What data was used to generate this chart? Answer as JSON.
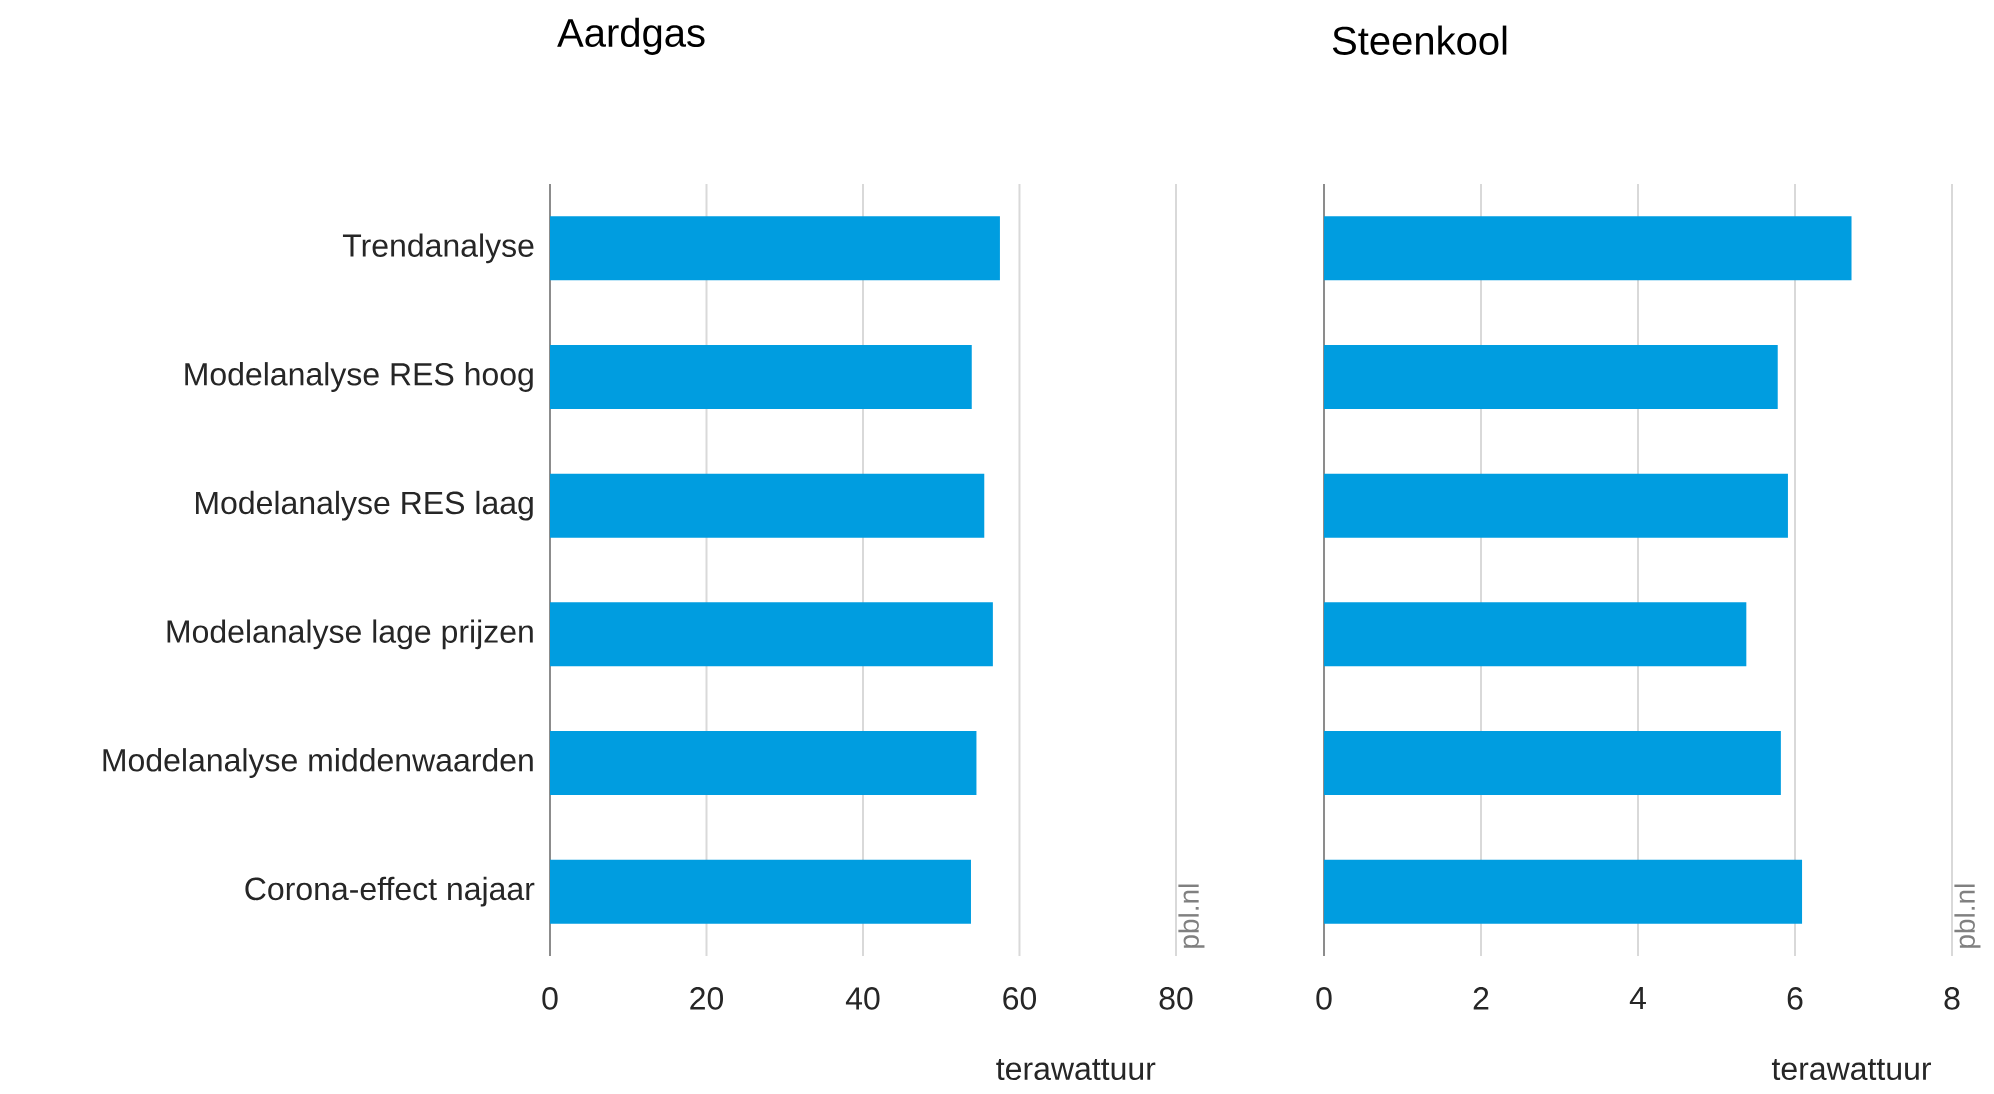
{
  "chart_data": [
    {
      "type": "bar",
      "orientation": "horizontal",
      "title": "Aardgas",
      "xlabel": "terawattuur",
      "categories": [
        "Trendanalyse",
        "Modelanalyse RES hoog",
        "Modelanalyse RES laag",
        "Modelanalyse lage prijzen",
        "Modelanalyse middenwaarden",
        "Corona-effect najaar"
      ],
      "values": [
        57.5,
        53.9,
        55.5,
        56.6,
        54.5,
        53.8
      ],
      "color": "#009de0",
      "xlim": [
        0,
        80
      ],
      "xticks": [
        0,
        20,
        40,
        60,
        80
      ],
      "grid": "x",
      "annotations": [
        "pbl.nl"
      ]
    },
    {
      "type": "bar",
      "orientation": "horizontal",
      "title": "Steenkool",
      "xlabel": "terawattuur",
      "categories": [
        null,
        null,
        null,
        null,
        null,
        null
      ],
      "values": [
        6.72,
        5.78,
        5.91,
        5.38,
        5.82,
        6.09
      ],
      "color": "#009de0",
      "xlim": [
        0,
        8
      ],
      "xticks": [
        0,
        2,
        4,
        6,
        8
      ],
      "grid": "x",
      "annotations": [
        "pbl.nl"
      ]
    }
  ]
}
